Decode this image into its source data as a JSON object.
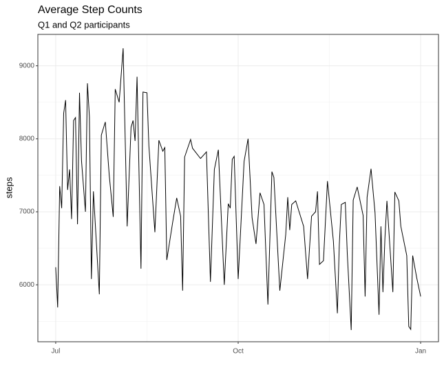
{
  "chart_data": {
    "type": "line",
    "title": "Average Step Counts",
    "subtitle": "Q1 and Q2 participants",
    "y_label": "steps",
    "x": [
      0,
      1,
      2,
      3,
      4,
      5,
      6,
      7,
      8,
      9,
      10,
      11,
      12,
      13,
      15,
      16,
      17,
      18,
      19,
      22,
      23,
      25,
      27,
      29,
      30,
      32,
      34,
      36,
      38,
      39,
      40,
      41,
      43,
      44,
      46,
      47,
      50,
      52,
      54,
      55,
      56,
      59,
      61,
      63,
      64,
      65,
      68,
      69,
      73,
      76,
      78,
      80,
      82,
      85,
      87,
      88,
      89,
      90,
      92,
      95,
      97,
      99,
      101,
      103,
      105,
      107,
      109,
      110,
      113,
      116,
      117,
      118,
      119,
      121,
      125,
      127,
      129,
      131,
      132,
      133,
      135,
      137,
      140,
      142,
      143,
      144,
      146,
      147,
      149,
      150,
      152,
      155,
      156,
      157,
      159,
      161,
      163,
      164,
      165,
      166,
      167,
      170,
      171,
      173,
      174,
      177,
      178,
      179,
      180,
      182,
      184
    ],
    "series": [
      {
        "name": "steps",
        "color": "#000000",
        "values": [
          6240,
          5690,
          7350,
          7050,
          8350,
          8530,
          7300,
          7580,
          6900,
          8250,
          8290,
          6830,
          8630,
          7700,
          7000,
          8760,
          8300,
          6080,
          7280,
          5870,
          8050,
          8230,
          7500,
          6930,
          8680,
          8500,
          9240,
          6800,
          8160,
          8250,
          7970,
          8850,
          6220,
          8640,
          8630,
          7900,
          6720,
          7980,
          7830,
          7880,
          6340,
          6860,
          7190,
          6940,
          5920,
          7750,
          7990,
          7870,
          7730,
          7820,
          6040,
          7580,
          7850,
          6000,
          7110,
          7050,
          7720,
          7760,
          6080,
          7690,
          8000,
          6920,
          6560,
          7260,
          7100,
          5730,
          7550,
          7470,
          5920,
          6690,
          7200,
          6750,
          7100,
          7150,
          6800,
          6080,
          6940,
          7000,
          7280,
          6280,
          6330,
          7420,
          6600,
          5610,
          6550,
          7100,
          7130,
          6430,
          5380,
          7160,
          7340,
          6950,
          5840,
          7200,
          7590,
          6990,
          5590,
          6800,
          5900,
          6640,
          7150,
          5900,
          7270,
          7150,
          6800,
          6400,
          5430,
          5390,
          6400,
          6100,
          5840
        ]
      }
    ],
    "xlim": [
      -9,
      193
    ],
    "xticks": [
      {
        "value": 0,
        "label": "Jul"
      },
      {
        "value": 92,
        "label": "Oct"
      },
      {
        "value": 184,
        "label": "Jan"
      }
    ],
    "ylim": [
      5220,
      9430
    ],
    "yticks": [
      6000,
      7000,
      8000,
      9000
    ],
    "grid": true
  }
}
